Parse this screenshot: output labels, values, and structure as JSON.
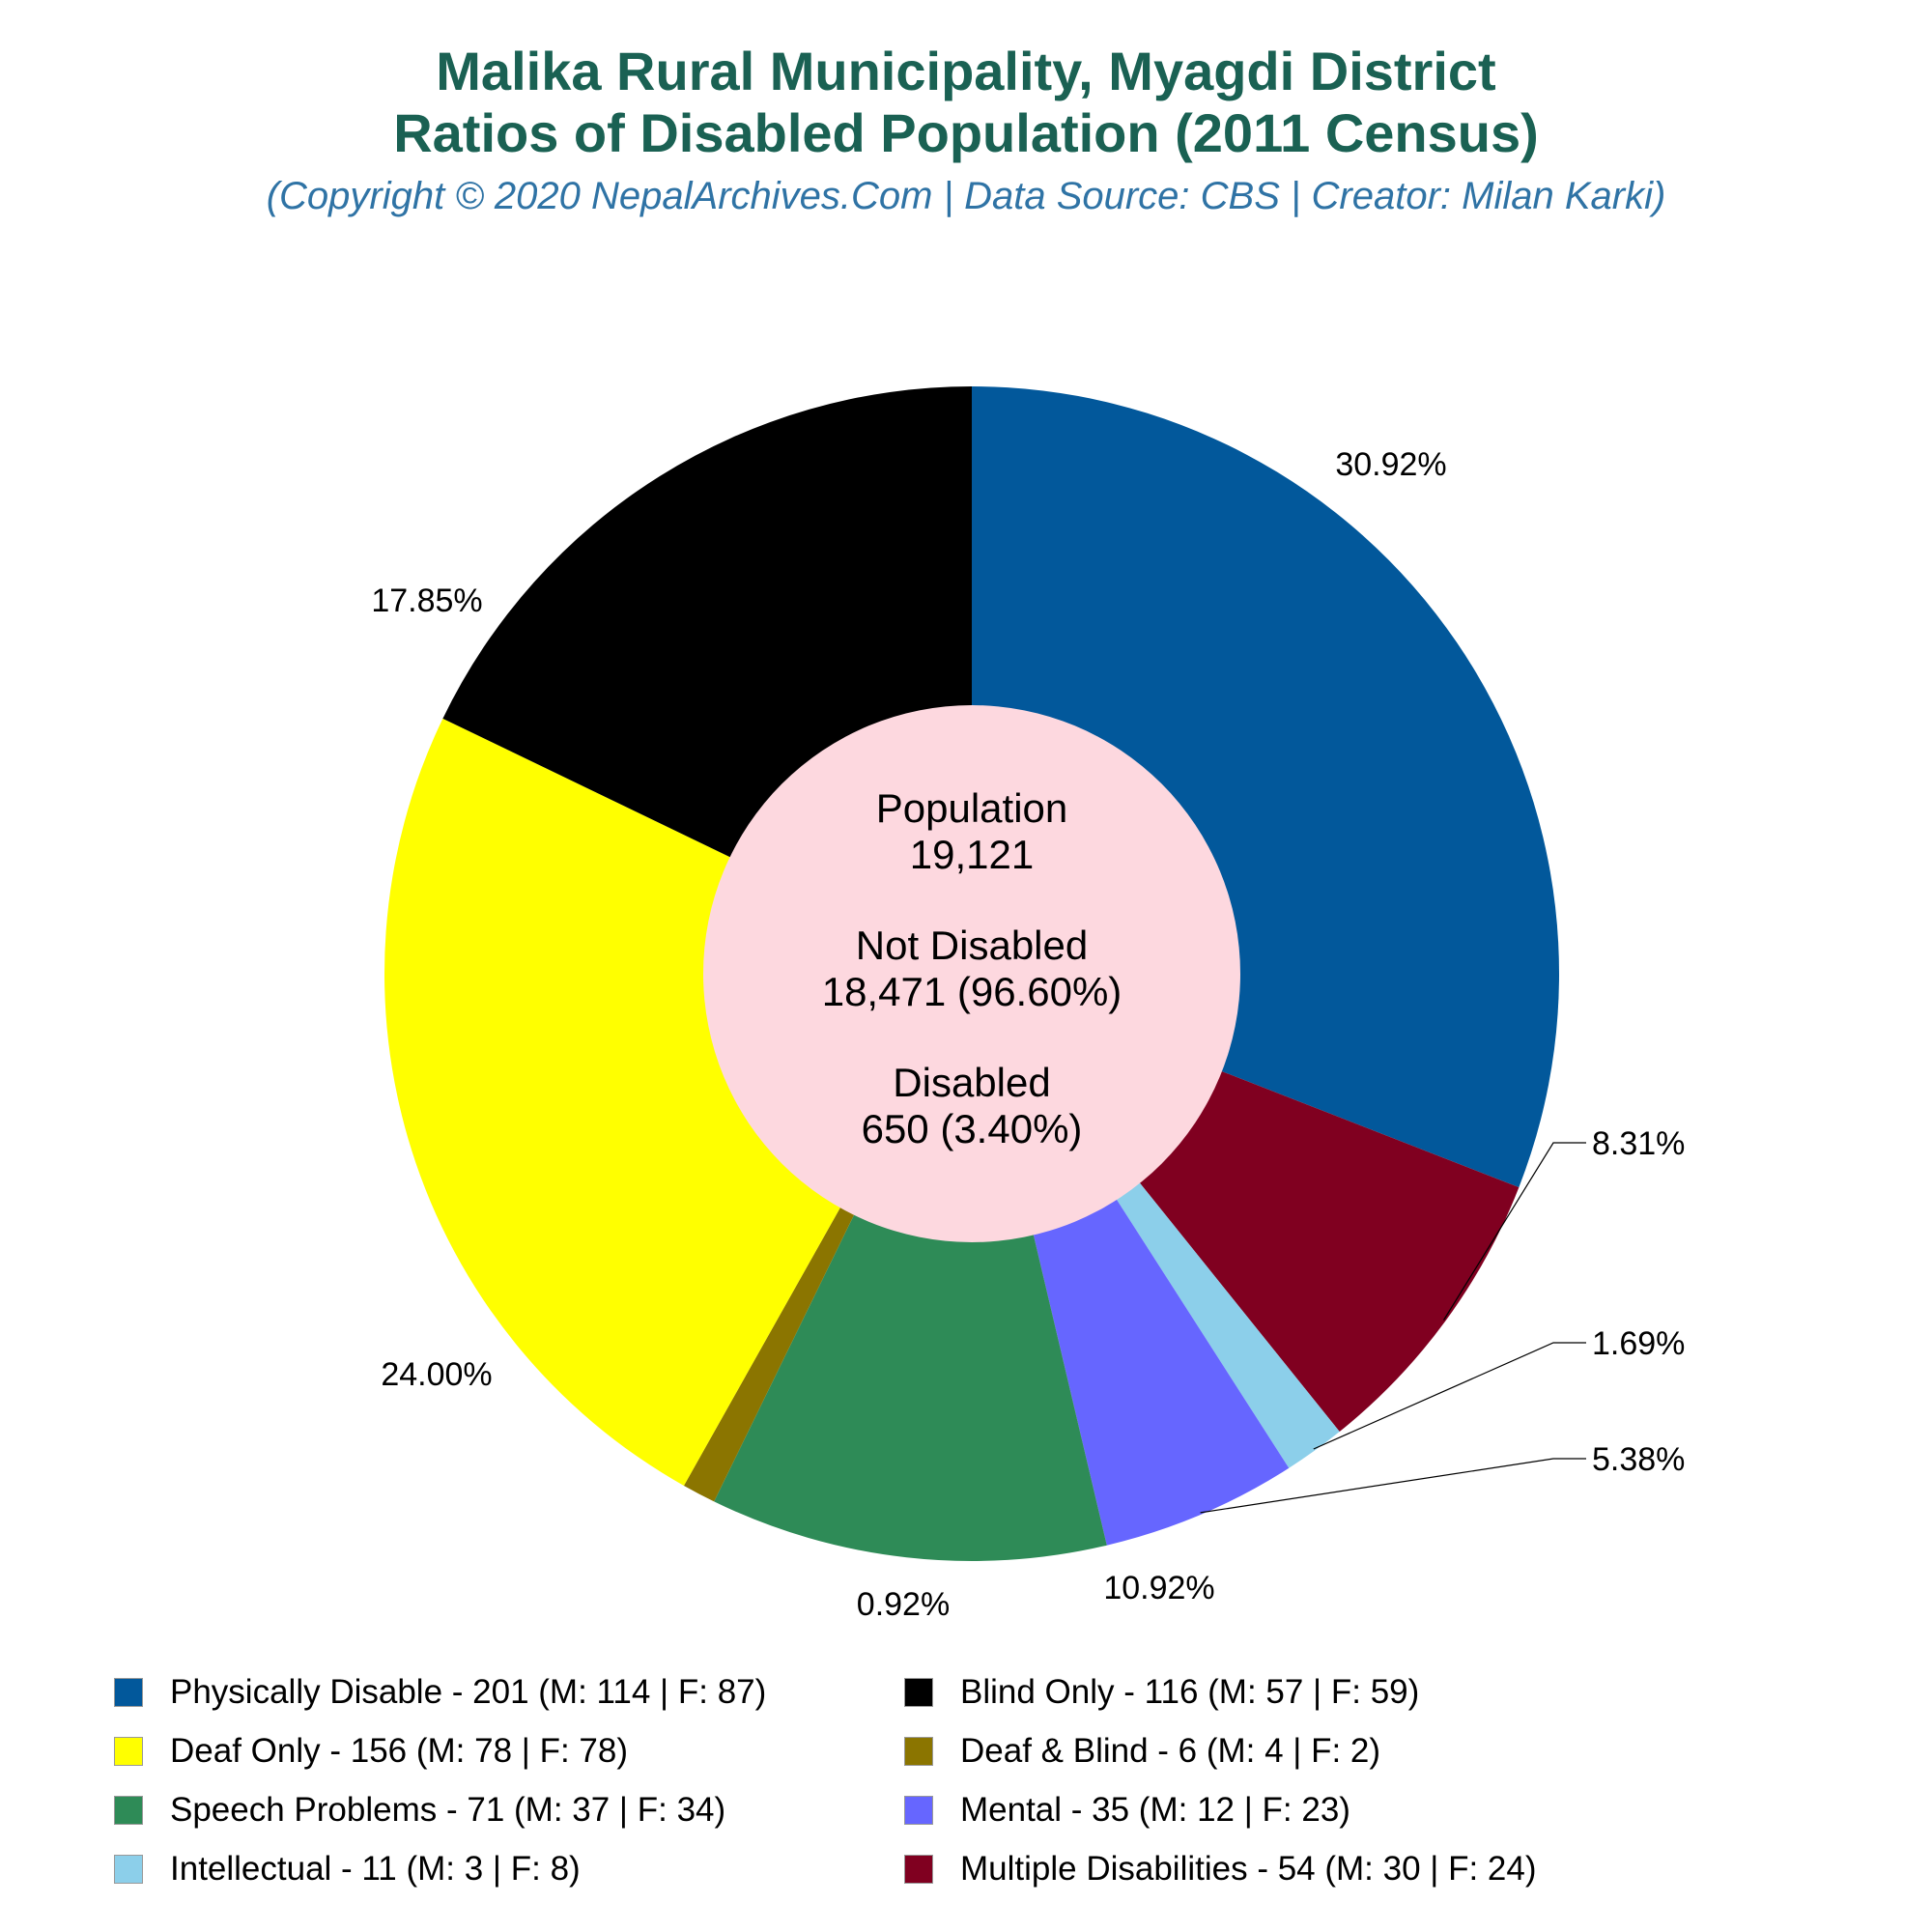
{
  "title_line1": "Malika Rural Municipality, Myagdi District",
  "title_line2": "Ratios of Disabled Population (2011 Census)",
  "subtitle": "(Copyright © 2020 NepalArchives.Com | Data Source: CBS | Creator: Milan Karki)",
  "center": {
    "population_label": "Population",
    "population_value": "19,121",
    "not_disabled_label": "Not Disabled",
    "not_disabled_value": "18,471 (96.60%)",
    "disabled_label": "Disabled",
    "disabled_value": "650 (3.40%)",
    "color": "#fdd8df"
  },
  "chart_data": {
    "type": "pie",
    "start_angle_deg": 90,
    "direction": "clockwise",
    "slices": [
      {
        "legend": "Physically Disable - 201 (M: 114 | F: 87)",
        "value": 201,
        "percent_label": "30.92%",
        "color": "#02589b"
      },
      {
        "legend": "Multiple Disabilities - 54 (M: 30 | F: 24)",
        "value": 54,
        "percent_label": "8.31%",
        "color": "#800020"
      },
      {
        "legend": "Intellectual - 11 (M: 3 | F: 8)",
        "value": 11,
        "percent_label": "1.69%",
        "color": "#8ccfea"
      },
      {
        "legend": "Mental - 35 (M: 12 | F: 23)",
        "value": 35,
        "percent_label": "5.38%",
        "color": "#6666ff"
      },
      {
        "legend": "Speech Problems - 71 (M: 37 | F: 34)",
        "value": 71,
        "percent_label": "10.92%",
        "color": "#2e8b57"
      },
      {
        "legend": "Deaf & Blind - 6 (M: 4 | F: 2)",
        "value": 6,
        "percent_label": "0.92%",
        "color": "#8b7500"
      },
      {
        "legend": "Deaf Only - 156 (M: 78 | F: 78)",
        "value": 156,
        "percent_label": "24.00%",
        "color": "#ffff00"
      },
      {
        "legend": "Blind Only - 116 (M: 57 | F: 59)",
        "value": 116,
        "percent_label": "17.85%",
        "color": "#000000"
      }
    ],
    "legend_order": [
      "Physically Disable - 201 (M: 114 | F: 87)",
      "Blind Only - 116 (M: 57 | F: 59)",
      "Deaf Only - 156 (M: 78 | F: 78)",
      "Deaf & Blind - 6 (M: 4 | F: 2)",
      "Speech Problems - 71 (M: 37 | F: 34)",
      "Mental - 35 (M: 12 | F: 23)",
      "Intellectual - 11 (M: 3 | F: 8)",
      "Multiple Disabilities - 54 (M: 30 | F: 24)"
    ],
    "legend_placement": "bottom"
  }
}
